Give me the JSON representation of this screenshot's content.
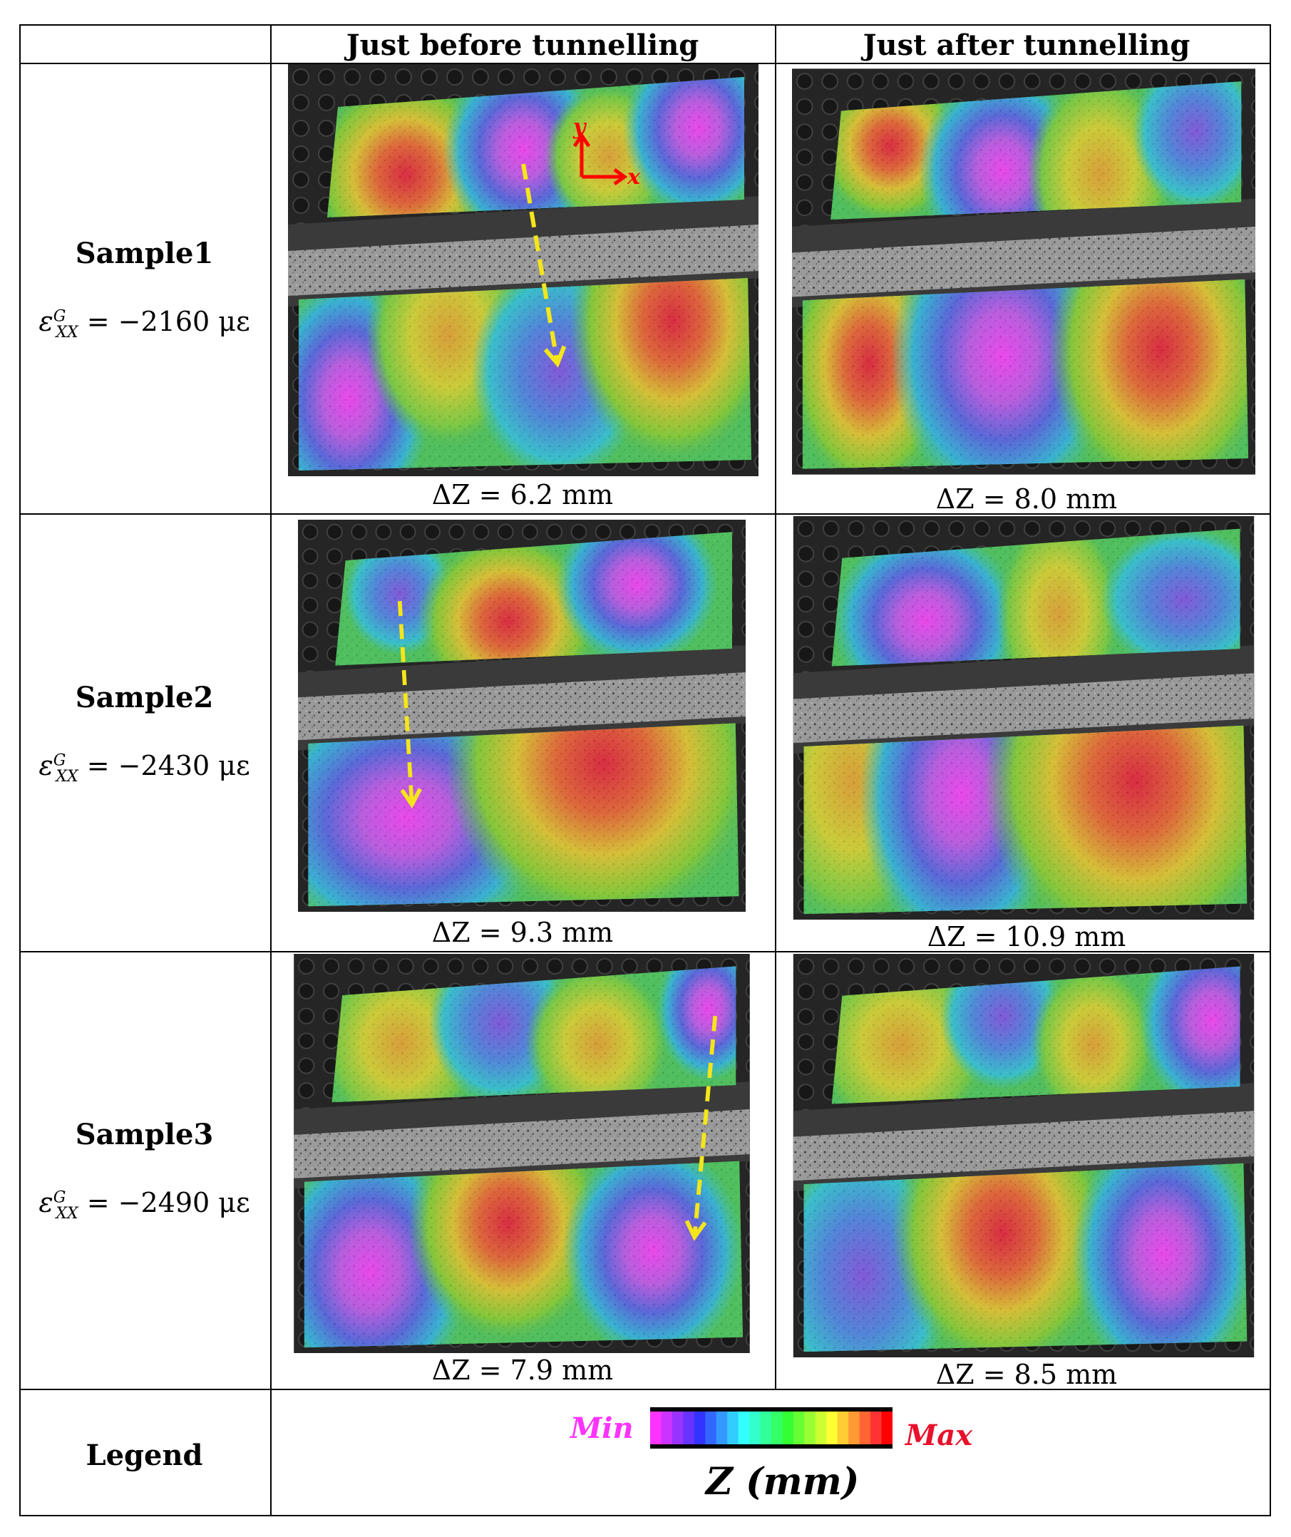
{
  "header": {
    "col1": "Just before tunnelling",
    "col2": "Just after tunnelling"
  },
  "rows": [
    {
      "name": "Sample1",
      "strain_symbol": "ε",
      "strain_sup": "G",
      "strain_sub": "XX",
      "strain_value": "= −2160 με",
      "dz_before": "ΔZ = 6.2 mm",
      "dz_after": "ΔZ = 8.0 mm"
    },
    {
      "name": "Sample2",
      "strain_symbol": "ε",
      "strain_sup": "G",
      "strain_sub": "XX",
      "strain_value": "= −2430 με",
      "dz_before": "ΔZ = 9.3 mm",
      "dz_after": "ΔZ = 10.9 mm"
    },
    {
      "name": "Sample3",
      "strain_symbol": "ε",
      "strain_sup": "G",
      "strain_sub": "XX",
      "strain_value": "= −2490 με",
      "dz_before": "ΔZ = 7.9 mm",
      "dz_after": "ΔZ = 8.5 mm"
    }
  ],
  "legend": {
    "label": "Legend",
    "min": "Min",
    "max": "Max",
    "axis_label": "Z (mm)"
  },
  "axes_labels": {
    "x": "x",
    "y": "y"
  },
  "colors": {
    "magenta": "#ff33ff",
    "red": "#e8102a",
    "arrow": "#f5e61a"
  }
}
